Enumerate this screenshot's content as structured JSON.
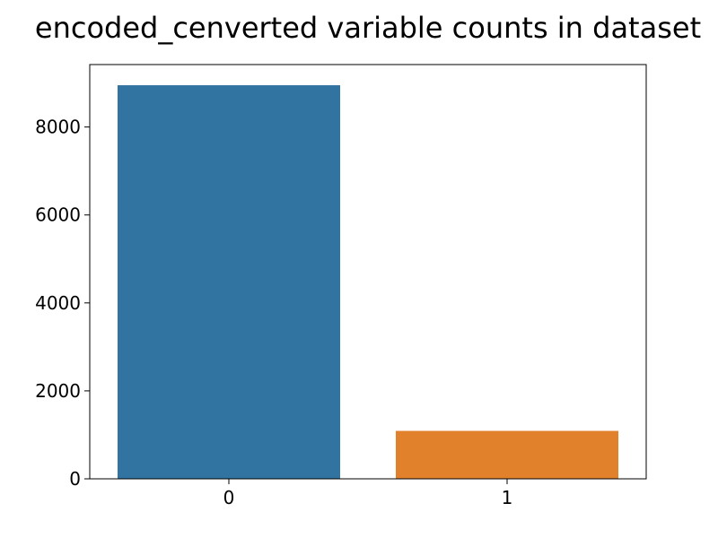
{
  "chart_data": {
    "type": "bar",
    "title": "encoded_cenverted variable counts in dataset",
    "xlabel": "",
    "ylabel": "",
    "categories": [
      "0",
      "1"
    ],
    "values": [
      8950,
      1090
    ],
    "colors": [
      "#3274a1",
      "#e1812c"
    ],
    "ylim": [
      0,
      9420
    ],
    "yticks": [
      0,
      2000,
      4000,
      6000,
      8000
    ],
    "grid": false,
    "legend": "none"
  }
}
